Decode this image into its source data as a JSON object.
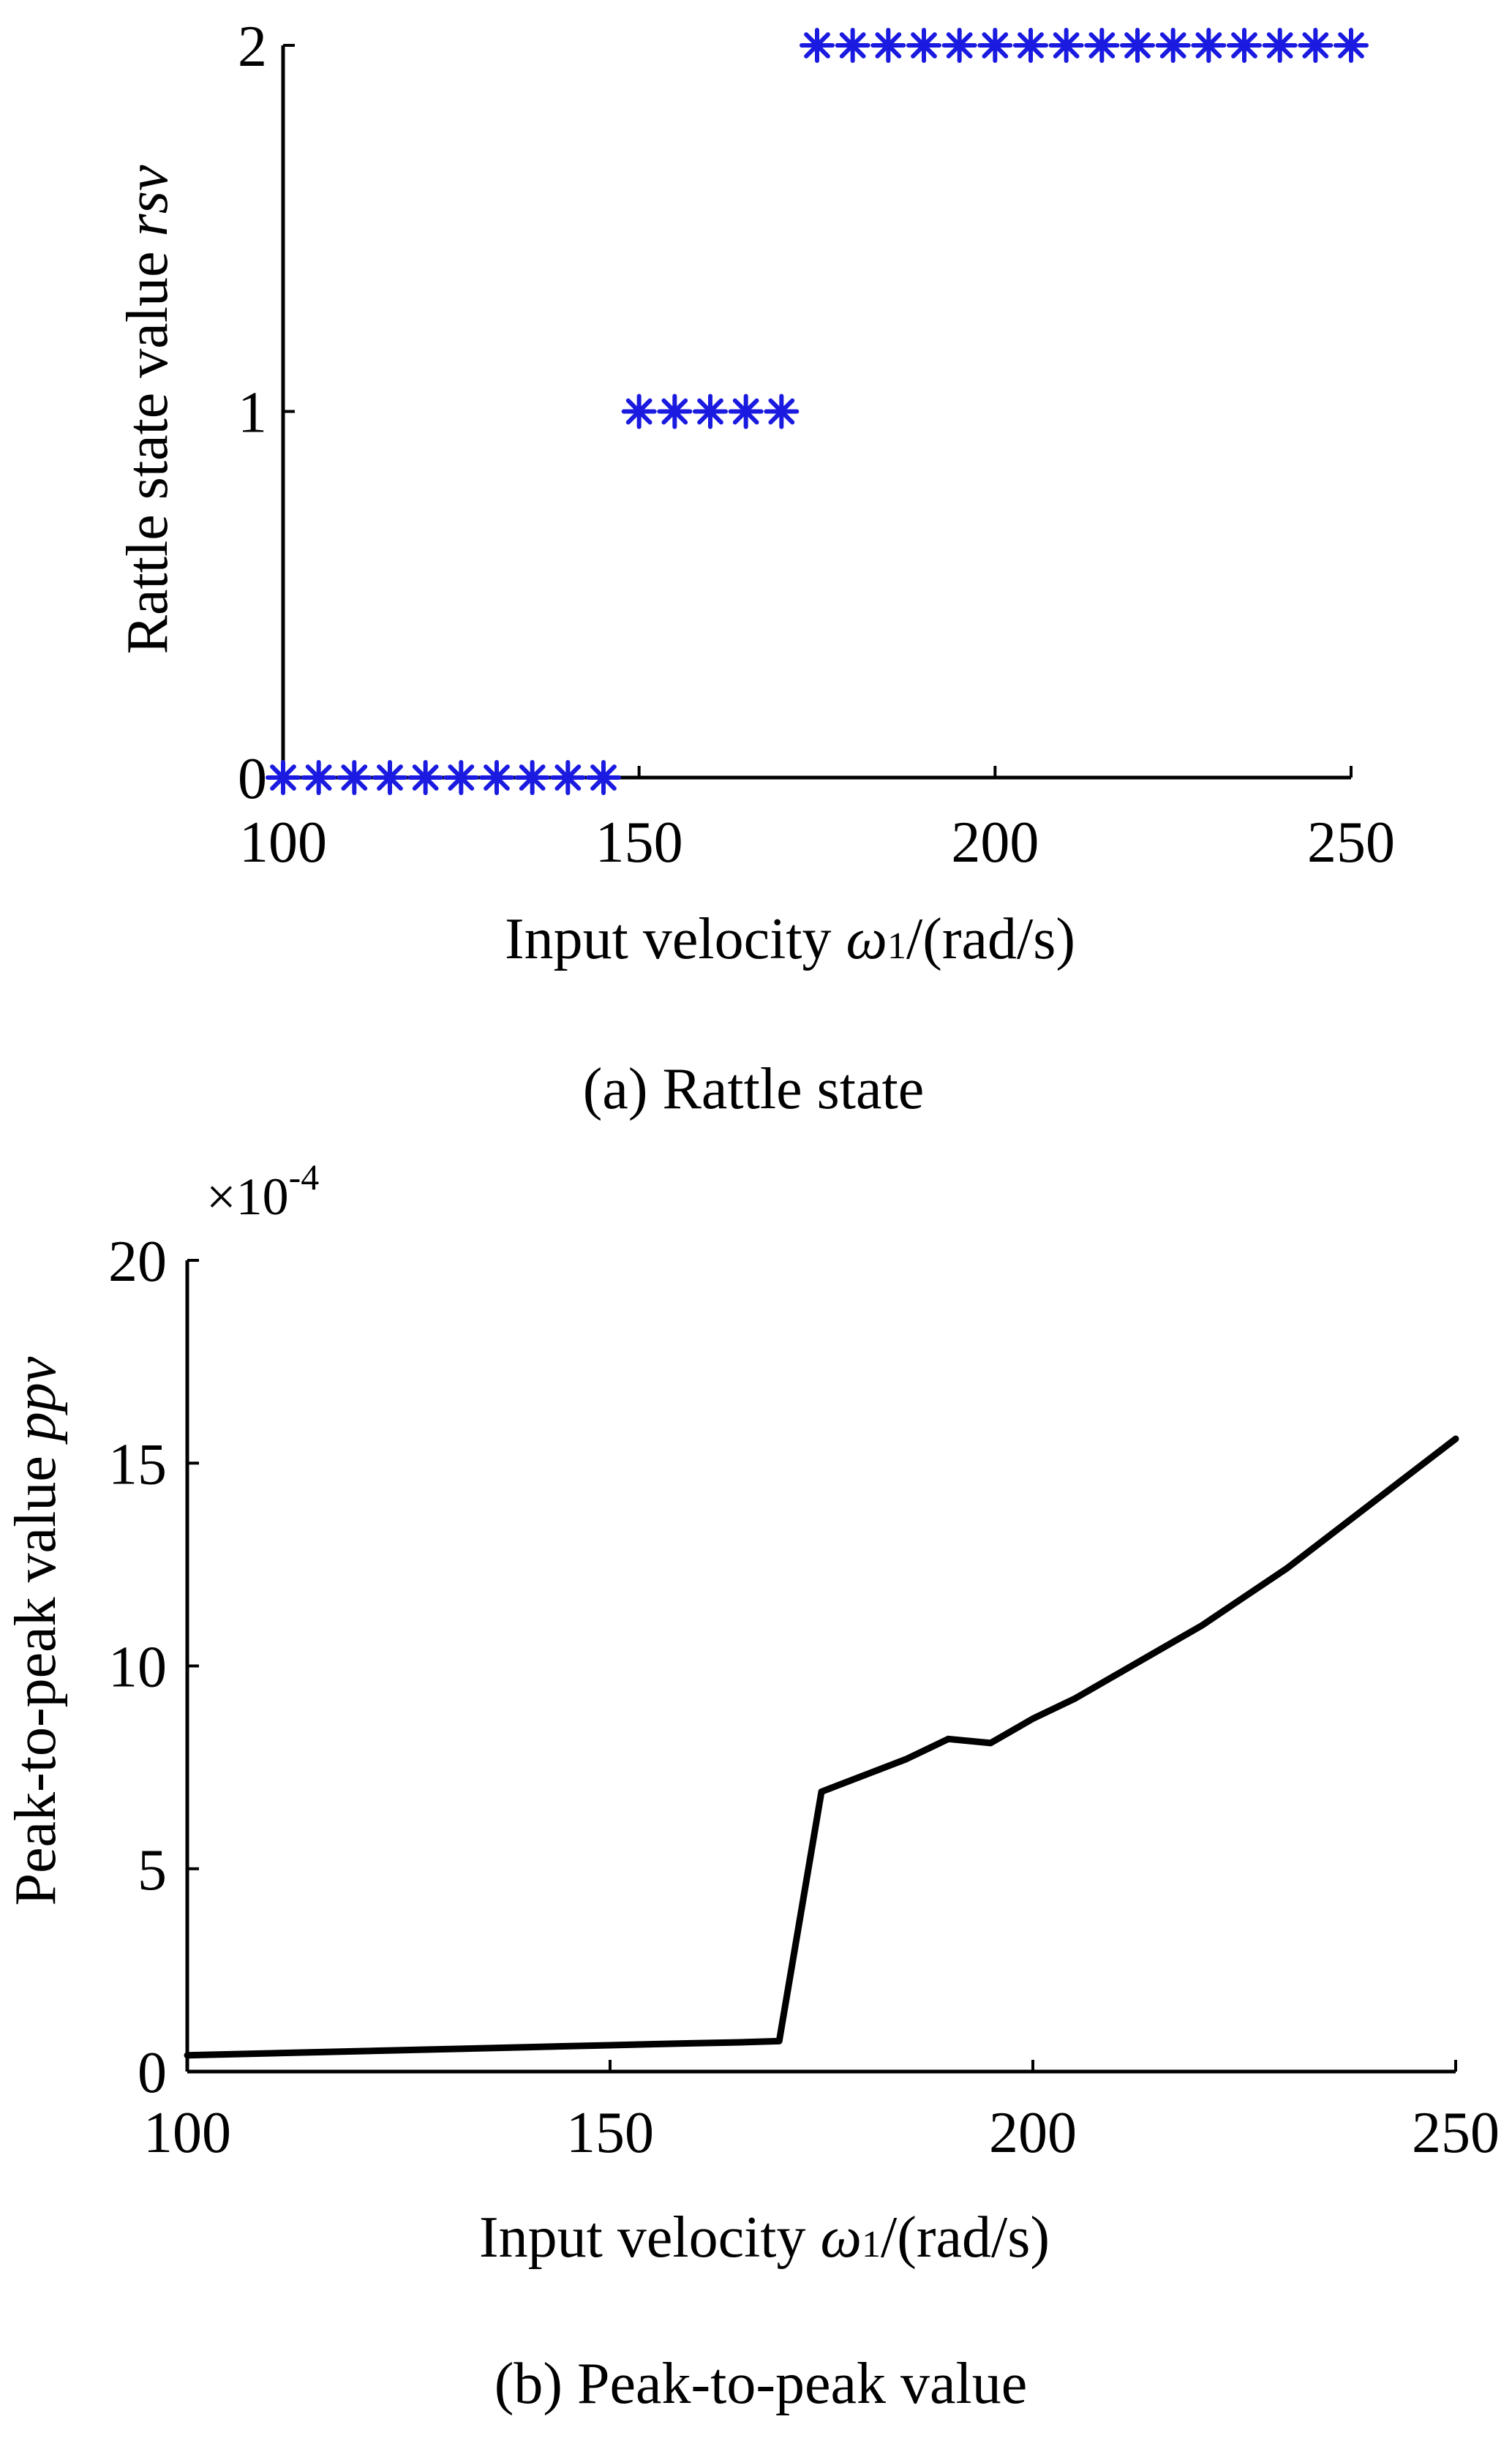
{
  "chart_data": [
    {
      "type": "scatter",
      "caption": "(a) Rattle state",
      "xlabel": "Input velocity ω1/(rad/s)",
      "xlabel_parts": {
        "text": "Input velocity ",
        "symbol": "ω",
        "subscript": "1",
        "unit": "/(rad/s)"
      },
      "ylabel": "Rattle state value rsv",
      "ylabel_parts": {
        "text": "Rattle state value ",
        "symbol": "rsv"
      },
      "xlim": [
        100,
        250
      ],
      "ylim": [
        0,
        2
      ],
      "xticks": [
        100,
        150,
        200,
        250
      ],
      "yticks": [
        0,
        1,
        2
      ],
      "marker": "*",
      "marker_color": "#1a1ae0",
      "grid": false,
      "series": [
        {
          "x": [
            100,
            105,
            110,
            115,
            120,
            125,
            130,
            135,
            140,
            145,
            150,
            155,
            160,
            165,
            170,
            175,
            180,
            185,
            190,
            195,
            200,
            205,
            210,
            215,
            220,
            225,
            230,
            235,
            240,
            245,
            250
          ],
          "y": [
            0,
            0,
            0,
            0,
            0,
            0,
            0,
            0,
            0,
            0,
            1,
            1,
            1,
            1,
            1,
            2,
            2,
            2,
            2,
            2,
            2,
            2,
            2,
            2,
            2,
            2,
            2,
            2,
            2,
            2,
            2
          ]
        }
      ]
    },
    {
      "type": "line",
      "caption": "(b) Peak-to-peak value",
      "xlabel": "Input velocity ω1/(rad/s)",
      "xlabel_parts": {
        "text": "Input velocity ",
        "symbol": "ω",
        "subscript": "1",
        "unit": "/(rad/s)"
      },
      "ylabel": "Peak-to-peak value ppv",
      "ylabel_parts": {
        "text": "Peak-to-peak value ",
        "symbol": "ppv"
      },
      "y_multiplier": {
        "base": "×10",
        "exponent": "-4"
      },
      "xlim": [
        100,
        250
      ],
      "ylim": [
        0,
        20
      ],
      "xticks": [
        100,
        150,
        200,
        250
      ],
      "yticks": [
        0,
        5,
        10,
        15,
        20
      ],
      "line_color": "#000000",
      "grid": false,
      "series": [
        {
          "x": [
            100,
            110,
            120,
            130,
            140,
            150,
            160,
            165,
            170,
            175,
            180,
            185,
            190,
            195,
            200,
            205,
            210,
            215,
            220,
            225,
            230,
            235,
            240,
            245,
            250
          ],
          "y": [
            0.4,
            0.45,
            0.5,
            0.55,
            0.6,
            0.65,
            0.7,
            0.72,
            0.75,
            6.9,
            7.3,
            7.7,
            8.2,
            8.1,
            8.7,
            9.2,
            9.8,
            10.4,
            11.0,
            11.7,
            12.4,
            13.2,
            14.0,
            14.8,
            15.6
          ]
        }
      ]
    }
  ]
}
